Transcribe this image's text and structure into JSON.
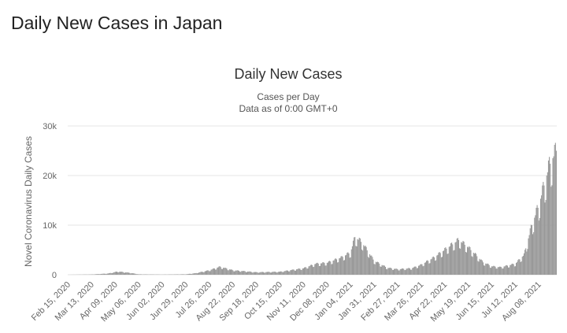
{
  "page": {
    "heading": "Daily New Cases in Japan"
  },
  "chart_data": {
    "type": "bar",
    "title": "Daily New Cases",
    "subtitle_line1": "Cases per Day",
    "subtitle_line2": "Data as of 0:00 GMT+0",
    "xlabel": "",
    "ylabel": "Novel Coronavirus Daily Cases",
    "ylim": [
      0,
      30000
    ],
    "y_ticks": [
      0,
      10000,
      20000,
      30000
    ],
    "y_tick_labels": [
      "0",
      "10k",
      "20k",
      "30k"
    ],
    "x_range": [
      "2020-02-15",
      "2021-08-28"
    ],
    "x_ticks": [
      {
        "date": "2020-02-15",
        "label": "Feb 15, 2020"
      },
      {
        "date": "2020-03-13",
        "label": "Mar 13, 2020"
      },
      {
        "date": "2020-04-09",
        "label": "Apr 09, 2020"
      },
      {
        "date": "2020-05-06",
        "label": "May 06, 2020"
      },
      {
        "date": "2020-06-02",
        "label": "Jun 02, 2020"
      },
      {
        "date": "2020-06-29",
        "label": "Jun 29, 2020"
      },
      {
        "date": "2020-07-26",
        "label": "Jul 26, 2020"
      },
      {
        "date": "2020-08-22",
        "label": "Aug 22, 2020"
      },
      {
        "date": "2020-09-18",
        "label": "Sep 18, 2020"
      },
      {
        "date": "2020-10-15",
        "label": "Oct 15, 2020"
      },
      {
        "date": "2020-11-11",
        "label": "Nov 11, 2020"
      },
      {
        "date": "2020-12-08",
        "label": "Dec 08, 2020"
      },
      {
        "date": "2021-01-04",
        "label": "Jan 04, 2021"
      },
      {
        "date": "2021-01-31",
        "label": "Jan 31, 2021"
      },
      {
        "date": "2021-02-27",
        "label": "Feb 27, 2021"
      },
      {
        "date": "2021-03-26",
        "label": "Mar 26, 2021"
      },
      {
        "date": "2021-04-22",
        "label": "Apr 22, 2021"
      },
      {
        "date": "2021-05-19",
        "label": "May 19, 2021"
      },
      {
        "date": "2021-06-15",
        "label": "Jun 15, 2021"
      },
      {
        "date": "2021-07-12",
        "label": "Jul 12, 2021"
      },
      {
        "date": "2021-08-08",
        "label": "Aug 08, 2021"
      }
    ],
    "grid": true,
    "legend": "none",
    "bar_color": "#999999",
    "grid_color": "#e6e6e6",
    "series": [
      {
        "values_daily_from": "2020-02-15",
        "anchor_points": [
          {
            "date": "2020-02-15",
            "value": 5
          },
          {
            "date": "2020-03-13",
            "value": 60
          },
          {
            "date": "2020-04-01",
            "value": 250
          },
          {
            "date": "2020-04-12",
            "value": 650
          },
          {
            "date": "2020-04-25",
            "value": 400
          },
          {
            "date": "2020-05-06",
            "value": 90
          },
          {
            "date": "2020-06-02",
            "value": 40
          },
          {
            "date": "2020-06-29",
            "value": 100
          },
          {
            "date": "2020-07-10",
            "value": 300
          },
          {
            "date": "2020-07-26",
            "value": 900
          },
          {
            "date": "2020-08-07",
            "value": 1600
          },
          {
            "date": "2020-08-22",
            "value": 900
          },
          {
            "date": "2020-09-18",
            "value": 500
          },
          {
            "date": "2020-10-15",
            "value": 600
          },
          {
            "date": "2020-11-11",
            "value": 1300
          },
          {
            "date": "2020-11-25",
            "value": 2200
          },
          {
            "date": "2020-12-08",
            "value": 2400
          },
          {
            "date": "2020-12-25",
            "value": 3500
          },
          {
            "date": "2021-01-04",
            "value": 4500
          },
          {
            "date": "2021-01-09",
            "value": 7600
          },
          {
            "date": "2021-01-17",
            "value": 6500
          },
          {
            "date": "2021-01-31",
            "value": 2800
          },
          {
            "date": "2021-02-15",
            "value": 1400
          },
          {
            "date": "2021-02-27",
            "value": 1100
          },
          {
            "date": "2021-03-15",
            "value": 1300
          },
          {
            "date": "2021-03-26",
            "value": 2000
          },
          {
            "date": "2021-04-10",
            "value": 3500
          },
          {
            "date": "2021-04-22",
            "value": 5000
          },
          {
            "date": "2021-05-08",
            "value": 7000
          },
          {
            "date": "2021-05-19",
            "value": 5500
          },
          {
            "date": "2021-06-05",
            "value": 2500
          },
          {
            "date": "2021-06-15",
            "value": 1700
          },
          {
            "date": "2021-06-25",
            "value": 1500
          },
          {
            "date": "2021-07-12",
            "value": 2200
          },
          {
            "date": "2021-07-22",
            "value": 4000
          },
          {
            "date": "2021-07-31",
            "value": 10000
          },
          {
            "date": "2021-08-08",
            "value": 14000
          },
          {
            "date": "2021-08-14",
            "value": 18000
          },
          {
            "date": "2021-08-20",
            "value": 22000
          },
          {
            "date": "2021-08-28",
            "value": 25000
          }
        ]
      }
    ]
  }
}
